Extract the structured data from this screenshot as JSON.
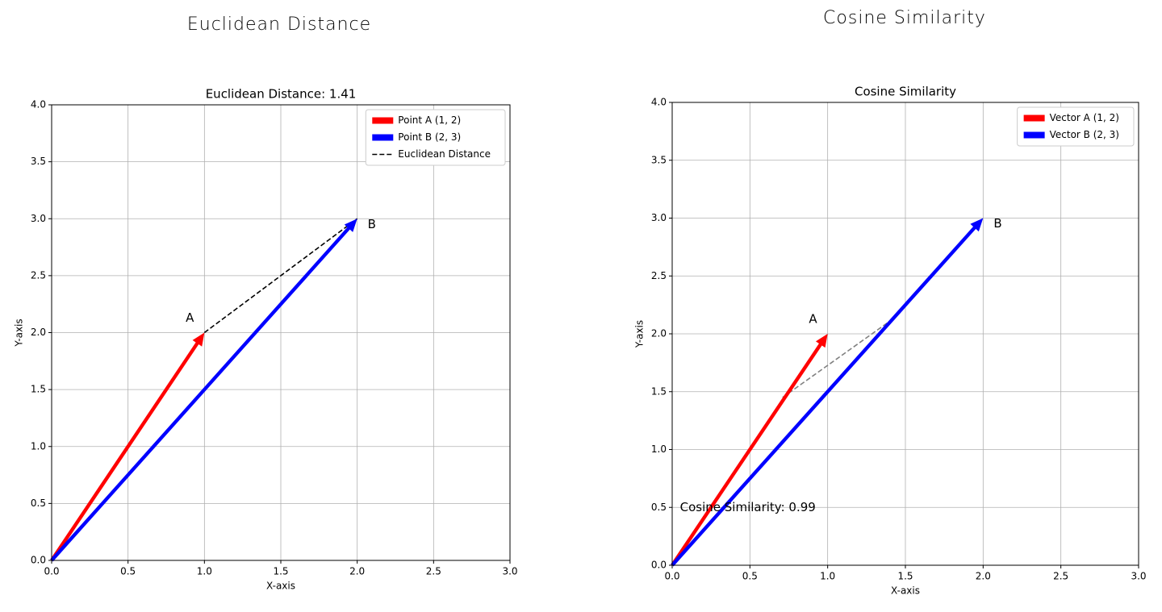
{
  "chart_data": [
    {
      "type": "quiver",
      "heading": "Euclidean Distance",
      "title": "Euclidean Distance: 1.41",
      "x_label": "X-axis",
      "y_label": "Y-axis",
      "xlim": [
        0,
        3
      ],
      "ylim": [
        0,
        4
      ],
      "xticks": [
        {
          "value": 0,
          "label": "0.0"
        },
        {
          "value": 0.5,
          "label": "0.5"
        },
        {
          "value": 1,
          "label": "1.0"
        },
        {
          "value": 1.5,
          "label": "1.5"
        },
        {
          "value": 2,
          "label": "2.0"
        },
        {
          "value": 2.5,
          "label": "2.5"
        },
        {
          "value": 3,
          "label": "3.0"
        }
      ],
      "yticks": [
        {
          "value": 0,
          "label": "0.0"
        },
        {
          "value": 0.5,
          "label": "0.5"
        },
        {
          "value": 1,
          "label": "1.0"
        },
        {
          "value": 1.5,
          "label": "1.5"
        },
        {
          "value": 2,
          "label": "2.0"
        },
        {
          "value": 2.5,
          "label": "2.5"
        },
        {
          "value": 3,
          "label": "3.0"
        },
        {
          "value": 3.5,
          "label": "3.5"
        },
        {
          "value": 4,
          "label": "4.0"
        }
      ],
      "grid": true,
      "legend": "upper right",
      "vectors": [
        {
          "name": "Point A (1, 2)",
          "label": "A",
          "color": "#ff0000",
          "x": 1,
          "y": 2
        },
        {
          "name": "Point B (2, 3)",
          "label": "B",
          "color": "#0000ff",
          "x": 2,
          "y": 3
        }
      ],
      "lines": [
        {
          "name": "Euclidean Distance",
          "color": "#000000",
          "dashed": true,
          "x": [
            1,
            2
          ],
          "y": [
            2,
            3
          ]
        }
      ]
    },
    {
      "type": "quiver",
      "heading": "Cosine Similarity",
      "title": "Cosine Similarity",
      "x_label": "X-axis",
      "y_label": "Y-axis",
      "xlim": [
        0,
        3
      ],
      "ylim": [
        0,
        4
      ],
      "xticks": [
        {
          "value": 0,
          "label": "0.0"
        },
        {
          "value": 0.5,
          "label": "0.5"
        },
        {
          "value": 1,
          "label": "1.0"
        },
        {
          "value": 1.5,
          "label": "1.5"
        },
        {
          "value": 2,
          "label": "2.0"
        },
        {
          "value": 2.5,
          "label": "2.5"
        },
        {
          "value": 3,
          "label": "3.0"
        }
      ],
      "yticks": [
        {
          "value": 0,
          "label": "0.0"
        },
        {
          "value": 0.5,
          "label": "0.5"
        },
        {
          "value": 1,
          "label": "1.0"
        },
        {
          "value": 1.5,
          "label": "1.5"
        },
        {
          "value": 2,
          "label": "2.0"
        },
        {
          "value": 2.5,
          "label": "2.5"
        },
        {
          "value": 3,
          "label": "3.0"
        },
        {
          "value": 3.5,
          "label": "3.5"
        },
        {
          "value": 4,
          "label": "4.0"
        }
      ],
      "grid": true,
      "legend": "upper right",
      "vectors": [
        {
          "name": "Vector A (1, 2)",
          "label": "A",
          "color": "#ff0000",
          "x": 1,
          "y": 2
        },
        {
          "name": "Vector B (2, 3)",
          "label": "B",
          "color": "#0000ff",
          "x": 2,
          "y": 3
        }
      ],
      "lines": [
        {
          "color": "#808080",
          "dashed": true,
          "x": [
            0.71,
            1.39
          ],
          "y": [
            1.45,
            2.1
          ]
        }
      ],
      "annotation": "Cosine Similarity: 0.99"
    }
  ]
}
